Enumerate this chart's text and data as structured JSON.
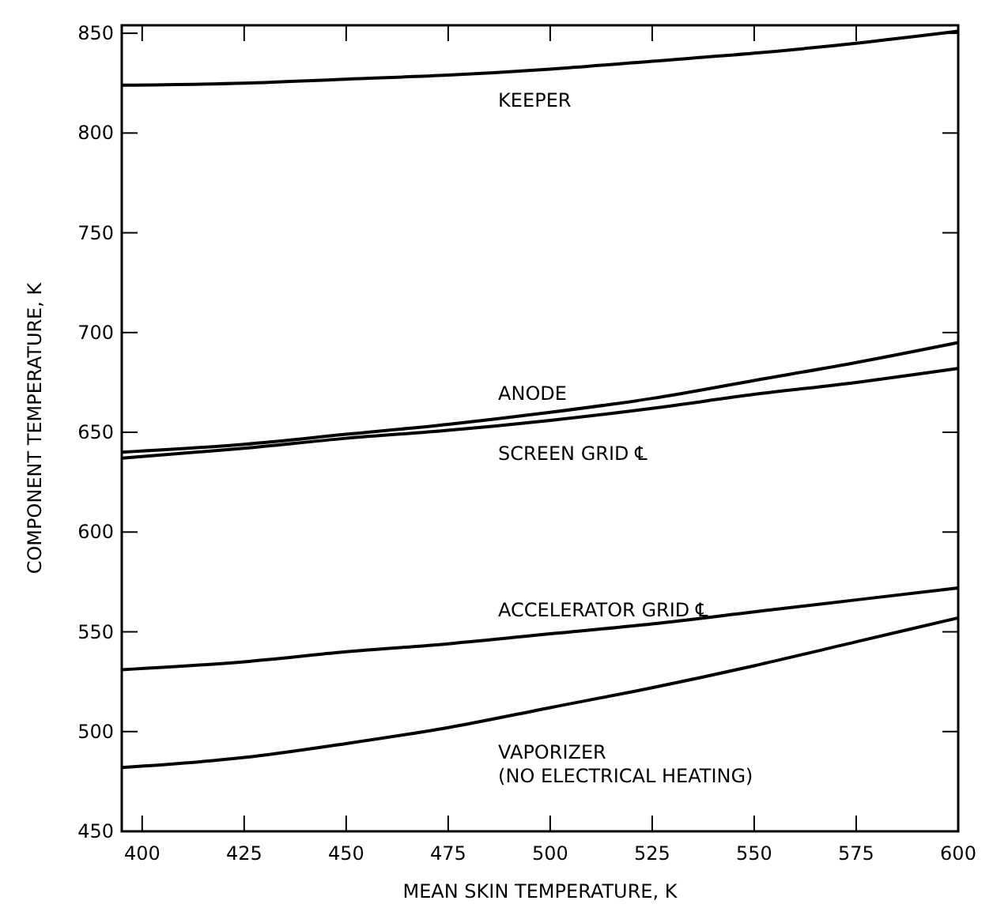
{
  "chart_data": {
    "type": "line",
    "xlabel": "MEAN SKIN TEMPERATURE, K",
    "ylabel": "COMPONENT TEMPERATURE, K",
    "xlim": [
      395,
      600
    ],
    "ylim": [
      450,
      854
    ],
    "xticks": [
      400,
      425,
      450,
      475,
      500,
      525,
      550,
      575,
      600
    ],
    "yticks": [
      450,
      500,
      550,
      600,
      650,
      700,
      750,
      800,
      850
    ],
    "grid": false,
    "marker": "none",
    "line_style": "solid",
    "x": [
      395,
      425,
      450,
      475,
      500,
      525,
      550,
      575,
      600
    ],
    "series": [
      {
        "name": "KEEPER",
        "color": "#000000",
        "values": [
          824,
          825,
          827,
          829,
          832,
          836,
          840,
          845,
          851
        ]
      },
      {
        "name": "ANODE",
        "color": "#000000",
        "values": [
          640,
          644,
          649,
          654,
          660,
          667,
          676,
          685,
          695
        ]
      },
      {
        "name": "SCREEN GRID ℄",
        "color": "#000000",
        "values": [
          637,
          642,
          647,
          651,
          656,
          662,
          669,
          675,
          682
        ]
      },
      {
        "name": "ACCELERATOR GRID ℄",
        "color": "#000000",
        "values": [
          531,
          535,
          540,
          544,
          549,
          554,
          560,
          566,
          572
        ]
      },
      {
        "name": "VAPORIZER\n(NO ELECTRICAL HEATING)",
        "color": "#000000",
        "values": [
          482,
          487,
          494,
          502,
          512,
          522,
          533,
          545,
          557
        ]
      }
    ]
  }
}
